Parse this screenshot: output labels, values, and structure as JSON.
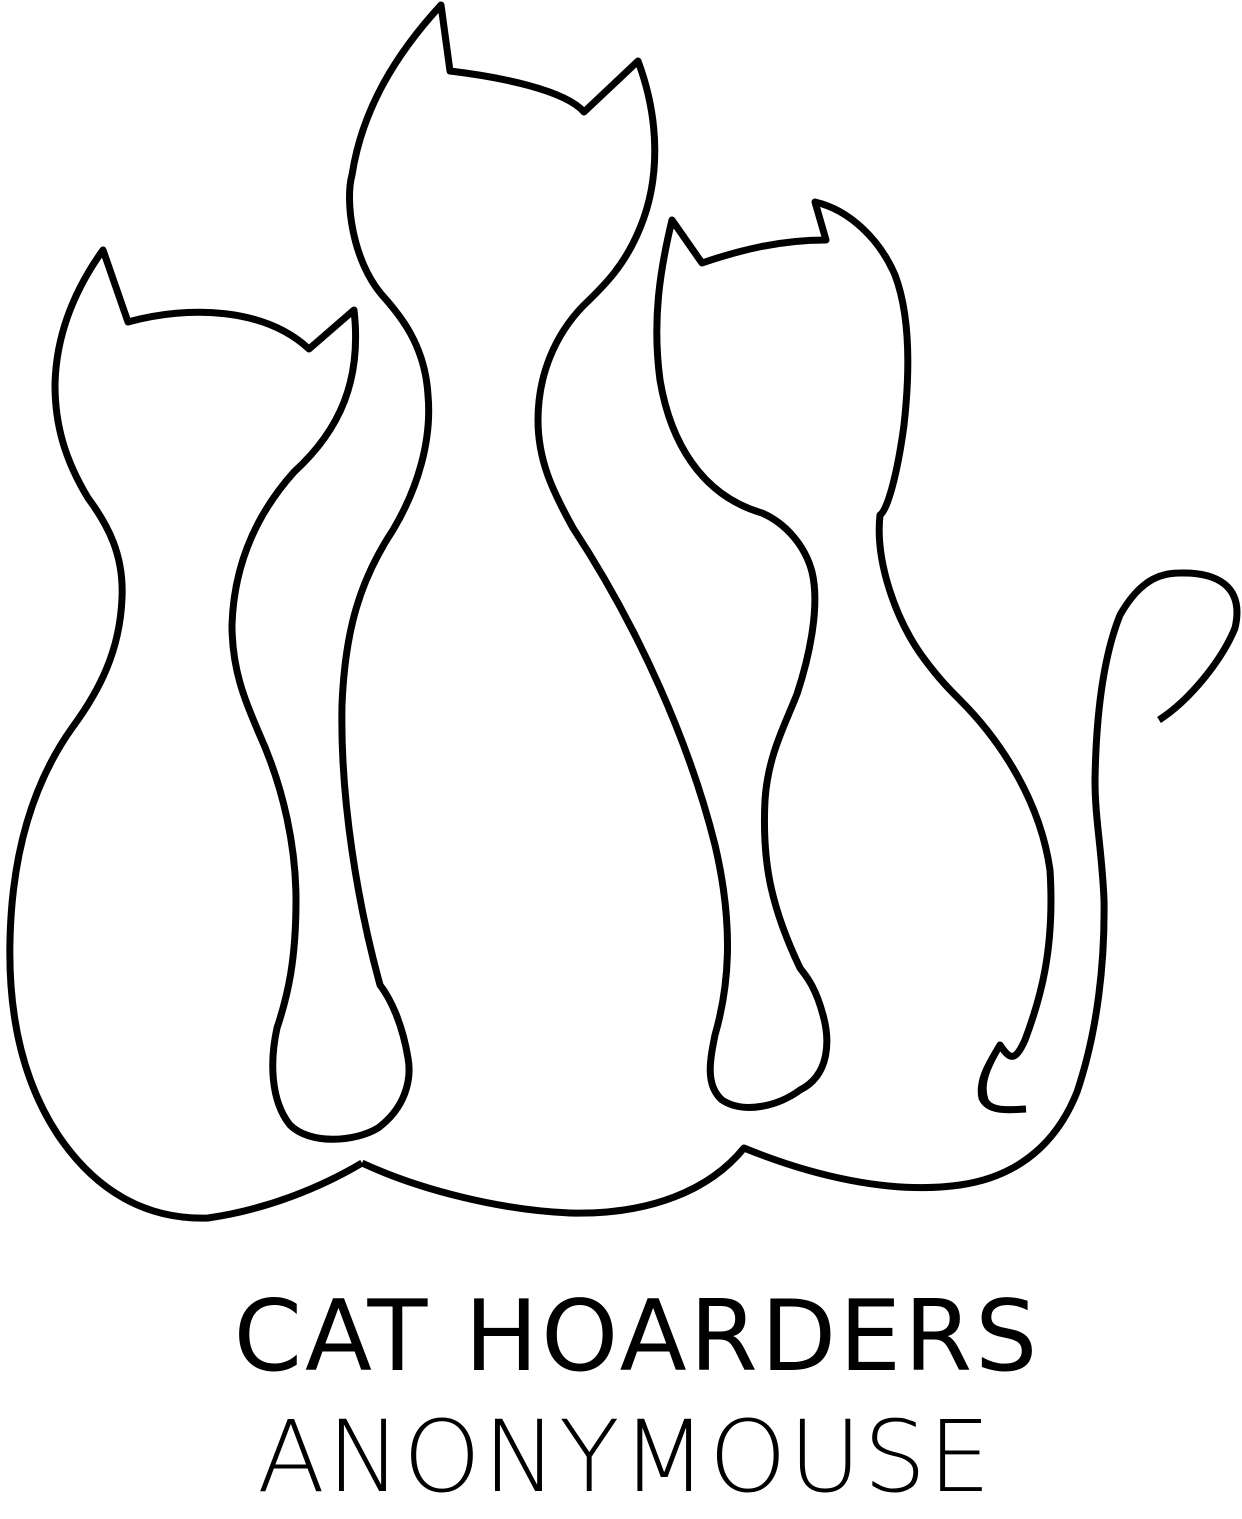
{
  "brand": {
    "line1": "CAT HOARDERS",
    "line2": "ANONYMOUSE",
    "ink_color": "#000000",
    "background_color": "#ffffff"
  },
  "logo": {
    "icon": "three-cats-outline-icon"
  }
}
